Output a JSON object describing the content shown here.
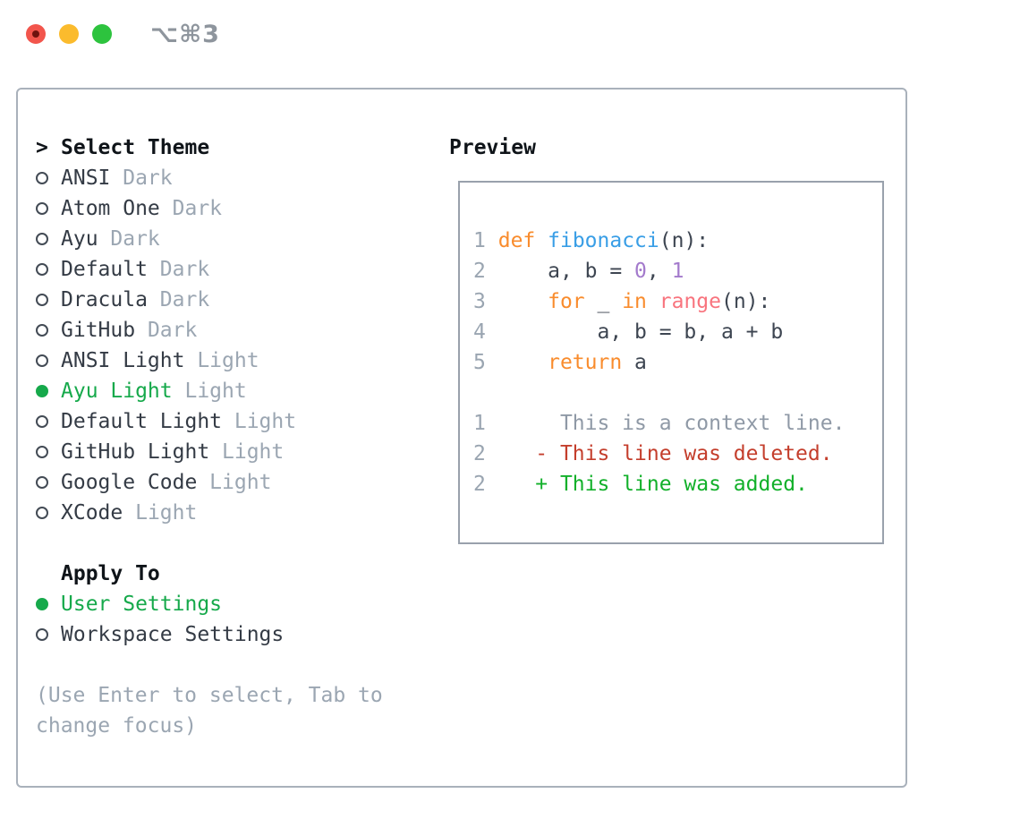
{
  "window": {
    "title": "⌥⌘3",
    "traffic_lights": [
      "close",
      "minimize",
      "zoom"
    ]
  },
  "colors": {
    "selected_green": "#16a94b",
    "panel_border": "#a9b1bb",
    "preview_border": "#99a1ac",
    "text_dark": "#343b45",
    "tag_gray": "#9ba6b2",
    "keyword_orange": "#f98c2d",
    "function_blue": "#399ee6",
    "number_purple": "#a37acc",
    "call_coral": "#f8747e",
    "diff_deleted_red": "#c43e2c",
    "diff_added_green": "#12b02a",
    "traffic_red": "#f2554c",
    "traffic_yellow": "#fbbb2d",
    "traffic_green": "#2dc33e"
  },
  "theme_panel": {
    "header": {
      "pointer": ">",
      "label": "Select Theme"
    },
    "themes": [
      {
        "name": "ANSI",
        "tag": "Dark",
        "selected": false
      },
      {
        "name": "Atom One",
        "tag": "Dark",
        "selected": false
      },
      {
        "name": "Ayu",
        "tag": "Dark",
        "selected": false
      },
      {
        "name": "Default",
        "tag": "Dark",
        "selected": false
      },
      {
        "name": "Dracula",
        "tag": "Dark",
        "selected": false
      },
      {
        "name": "GitHub",
        "tag": "Dark",
        "selected": false
      },
      {
        "name": "ANSI Light",
        "tag": "Light",
        "selected": false
      },
      {
        "name": "Ayu Light",
        "tag": "Light",
        "selected": true
      },
      {
        "name": "Default Light",
        "tag": "Light",
        "selected": false
      },
      {
        "name": "GitHub Light",
        "tag": "Light",
        "selected": false
      },
      {
        "name": "Google Code",
        "tag": "Light",
        "selected": false
      },
      {
        "name": "XCode",
        "tag": "Light",
        "selected": false
      }
    ],
    "apply_to": {
      "label": "Apply To",
      "options": [
        {
          "name": "User Settings",
          "selected": true
        },
        {
          "name": "Workspace Settings",
          "selected": false
        }
      ]
    },
    "hint": "(Use Enter to select, Tab to change focus)"
  },
  "preview": {
    "title": "Preview",
    "lines": [
      {
        "kind": "code",
        "tokens": [
          [
            "ln",
            "1"
          ],
          [
            "pl",
            " "
          ],
          [
            "kw",
            "def"
          ],
          [
            "pl",
            " "
          ],
          [
            "fn",
            "fibonacci"
          ],
          [
            "pl",
            "(n):"
          ]
        ]
      },
      {
        "kind": "code",
        "tokens": [
          [
            "ln",
            "2"
          ],
          [
            "pl",
            "     a, b = "
          ],
          [
            "nu",
            "0"
          ],
          [
            "pl",
            ", "
          ],
          [
            "nu",
            "1"
          ]
        ]
      },
      {
        "kind": "code",
        "tokens": [
          [
            "ln",
            "3"
          ],
          [
            "pl",
            "     "
          ],
          [
            "kw",
            "for"
          ],
          [
            "pl",
            " _ "
          ],
          [
            "kw",
            "in"
          ],
          [
            "pl",
            " "
          ],
          [
            "ca",
            "range"
          ],
          [
            "pl",
            "(n):"
          ]
        ]
      },
      {
        "kind": "code",
        "tokens": [
          [
            "ln",
            "4"
          ],
          [
            "pl",
            "         a, b = b, a + b"
          ]
        ]
      },
      {
        "kind": "code",
        "tokens": [
          [
            "ln",
            "5"
          ],
          [
            "pl",
            "     "
          ],
          [
            "kw",
            "return"
          ],
          [
            "pl",
            " a"
          ]
        ]
      },
      {
        "kind": "blank",
        "tokens": []
      },
      {
        "kind": "diff-context",
        "tokens": [
          [
            "ln",
            "1"
          ],
          [
            "ctx",
            "      This is a context line."
          ]
        ]
      },
      {
        "kind": "diff-deleted",
        "tokens": [
          [
            "ln",
            "2"
          ],
          [
            "pl",
            "    "
          ],
          [
            "del",
            "- This line was deleted."
          ]
        ]
      },
      {
        "kind": "diff-added",
        "tokens": [
          [
            "ln",
            "2"
          ],
          [
            "pl",
            "    "
          ],
          [
            "add",
            "+ This line was added."
          ]
        ]
      }
    ]
  }
}
